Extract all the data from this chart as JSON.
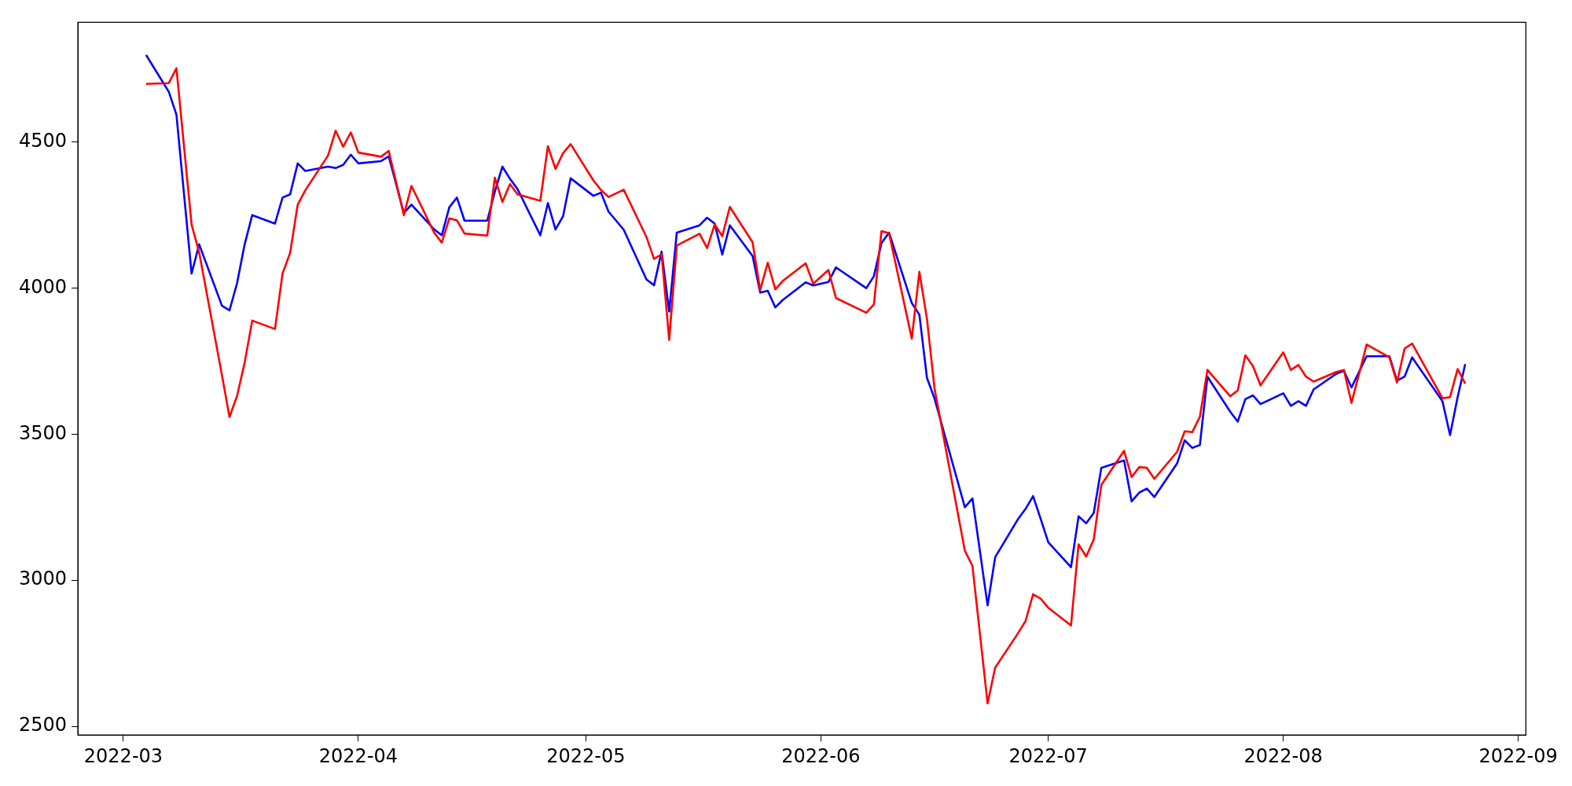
{
  "chart_data": {
    "type": "line",
    "marker": "none",
    "line_style": "solid",
    "grid": false,
    "legend": false,
    "x": [
      "2022-03-04",
      "2022-03-07",
      "2022-03-08",
      "2022-03-10",
      "2022-03-11",
      "2022-03-14",
      "2022-03-15",
      "2022-03-16",
      "2022-03-17",
      "2022-03-18",
      "2022-03-21",
      "2022-03-22",
      "2022-03-23",
      "2022-03-24",
      "2022-03-25",
      "2022-03-28",
      "2022-03-29",
      "2022-03-30",
      "2022-03-31",
      "2022-04-01",
      "2022-04-04",
      "2022-04-05",
      "2022-04-07",
      "2022-04-08",
      "2022-04-11",
      "2022-04-12",
      "2022-04-13",
      "2022-04-14",
      "2022-04-15",
      "2022-04-18",
      "2022-04-19",
      "2022-04-20",
      "2022-04-21",
      "2022-04-22",
      "2022-04-25",
      "2022-04-26",
      "2022-04-27",
      "2022-04-28",
      "2022-04-29",
      "2022-05-02",
      "2022-05-03",
      "2022-05-04",
      "2022-05-06",
      "2022-05-09",
      "2022-05-10",
      "2022-05-11",
      "2022-05-12",
      "2022-05-13",
      "2022-05-16",
      "2022-05-17",
      "2022-05-18",
      "2022-05-19",
      "2022-05-20",
      "2022-05-23",
      "2022-05-24",
      "2022-05-25",
      "2022-05-26",
      "2022-05-27",
      "2022-05-30",
      "2022-05-31",
      "2022-06-02",
      "2022-06-03",
      "2022-06-07",
      "2022-06-08",
      "2022-06-09",
      "2022-06-10",
      "2022-06-13",
      "2022-06-14",
      "2022-06-15",
      "2022-06-16",
      "2022-06-20",
      "2022-06-21",
      "2022-06-23",
      "2022-06-24",
      "2022-06-27",
      "2022-06-28",
      "2022-06-29",
      "2022-06-30",
      "2022-07-01",
      "2022-07-04",
      "2022-07-05",
      "2022-07-06",
      "2022-07-07",
      "2022-07-08",
      "2022-07-11",
      "2022-07-12",
      "2022-07-13",
      "2022-07-14",
      "2022-07-15",
      "2022-07-18",
      "2022-07-19",
      "2022-07-20",
      "2022-07-21",
      "2022-07-22",
      "2022-07-25",
      "2022-07-26",
      "2022-07-27",
      "2022-07-28",
      "2022-07-29",
      "2022-08-01",
      "2022-08-02",
      "2022-08-03",
      "2022-08-04",
      "2022-08-05",
      "2022-08-08",
      "2022-08-09",
      "2022-08-10",
      "2022-08-12",
      "2022-08-15",
      "2022-08-16",
      "2022-08-17",
      "2022-08-18",
      "2022-08-22",
      "2022-08-23",
      "2022-08-24",
      "2022-08-25"
    ],
    "series": [
      {
        "color": "#ff0000",
        "values": [
          4699,
          4702,
          4753,
          4218,
          4122,
          3703,
          3559,
          3631,
          3745,
          3889,
          3860,
          4050,
          4121,
          4286,
          4335,
          4454,
          4539,
          4484,
          4533,
          4464,
          4450,
          4470,
          4250,
          4350,
          4190,
          4156,
          4239,
          4232,
          4187,
          4180,
          4378,
          4295,
          4356,
          4321,
          4299,
          4486,
          4408,
          4462,
          4493,
          4369,
          4336,
          4312,
          4337,
          4175,
          4100,
          4116,
          3823,
          4146,
          4186,
          4137,
          4218,
          4178,
          4278,
          4157,
          3993,
          4087,
          3996,
          4025,
          4085,
          4015,
          4062,
          3966,
          3916,
          3944,
          4195,
          4188,
          3827,
          4056,
          3895,
          3656,
          3101,
          3049,
          2578,
          2701,
          2818,
          2860,
          2952,
          2937,
          2906,
          2845,
          3123,
          3081,
          3139,
          3326,
          3443,
          3353,
          3387,
          3385,
          3347,
          3440,
          3510,
          3507,
          3560,
          3720,
          3630,
          3650,
          3770,
          3733,
          3667,
          3780,
          3720,
          3737,
          3697,
          3680,
          3713,
          3720,
          3607,
          3807,
          3763,
          3677,
          3793,
          3810,
          3623,
          3627,
          3723,
          3673
        ]
      },
      {
        "color": "#0000ff",
        "values": [
          4798,
          4672,
          4594,
          4050,
          4150,
          3940,
          3924,
          4017,
          4150,
          4250,
          4221,
          4310,
          4321,
          4427,
          4401,
          4416,
          4411,
          4422,
          4457,
          4427,
          4435,
          4451,
          4257,
          4286,
          4201,
          4181,
          4277,
          4310,
          4231,
          4231,
          4330,
          4416,
          4374,
          4339,
          4181,
          4291,
          4201,
          4246,
          4376,
          4316,
          4327,
          4262,
          4200,
          4030,
          4010,
          4125,
          3920,
          4190,
          4215,
          4241,
          4221,
          4115,
          4215,
          4110,
          3985,
          3991,
          3934,
          3960,
          4020,
          4009,
          4021,
          4071,
          4000,
          4041,
          4154,
          4190,
          3949,
          3909,
          3693,
          3622,
          3250,
          3280,
          2914,
          3079,
          3209,
          3244,
          3288,
          3210,
          3130,
          3045,
          3219,
          3195,
          3230,
          3385,
          3410,
          3270,
          3300,
          3314,
          3285,
          3400,
          3479,
          3453,
          3463,
          3697,
          3577,
          3543,
          3620,
          3633,
          3603,
          3640,
          3597,
          3613,
          3597,
          3653,
          3707,
          3717,
          3660,
          3767,
          3767,
          3683,
          3697,
          3763,
          3613,
          3497,
          3627,
          3740
        ]
      }
    ],
    "xlim": [
      "2022-02-23",
      "2022-09-02"
    ],
    "xticks": [
      "2022-03",
      "2022-04",
      "2022-05",
      "2022-06",
      "2022-07",
      "2022-08",
      "2022-09"
    ],
    "ylim": [
      2470,
      4910
    ],
    "yticks": [
      2500,
      3000,
      3500,
      4000,
      4500
    ]
  }
}
